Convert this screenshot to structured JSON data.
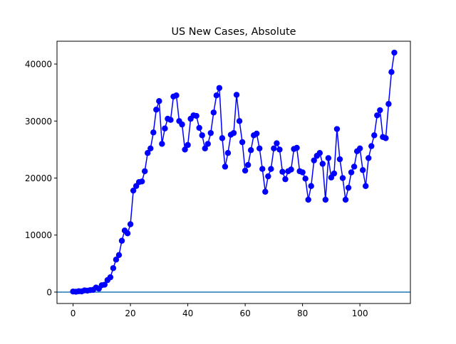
{
  "chart_data": {
    "type": "line",
    "title": "US New Cases, Absolute",
    "xlabel": "",
    "ylabel": "",
    "xlim": [
      -5.6,
      117.6
    ],
    "ylim": [
      -2000,
      44000
    ],
    "xticks": [
      0,
      20,
      40,
      60,
      80,
      100
    ],
    "yticks": [
      0,
      10000,
      20000,
      30000,
      40000
    ],
    "grid": false,
    "legend": "none",
    "colors": {
      "series": "#0000ff",
      "baseline": "#1f77b4"
    },
    "baseline_y": 0,
    "series": [
      {
        "marker": "circle",
        "x": [
          0,
          1,
          2,
          3,
          4,
          5,
          6,
          7,
          8,
          9,
          10,
          11,
          12,
          13,
          14,
          15,
          16,
          17,
          18,
          19,
          20,
          21,
          22,
          23,
          24,
          25,
          26,
          27,
          28,
          29,
          30,
          31,
          32,
          33,
          34,
          35,
          36,
          37,
          38,
          39,
          40,
          41,
          42,
          43,
          44,
          45,
          46,
          47,
          48,
          49,
          50,
          51,
          52,
          53,
          54,
          55,
          56,
          57,
          58,
          59,
          60,
          61,
          62,
          63,
          64,
          65,
          66,
          67,
          68,
          69,
          70,
          71,
          72,
          73,
          74,
          75,
          76,
          77,
          78,
          79,
          80,
          81,
          82,
          83,
          84,
          85,
          86,
          87,
          88,
          89,
          90,
          91,
          92,
          93,
          94,
          95,
          96,
          97,
          98,
          99,
          100,
          101,
          102,
          103,
          104,
          105,
          106,
          107,
          108,
          109,
          110,
          111,
          112
        ],
        "y": [
          100,
          60,
          150,
          120,
          300,
          250,
          350,
          400,
          800,
          600,
          1200,
          1300,
          2100,
          2600,
          4200,
          5700,
          6500,
          9000,
          10800,
          10300,
          11900,
          17800,
          18600,
          19300,
          19400,
          21200,
          24400,
          25200,
          28000,
          32000,
          33500,
          26000,
          28700,
          30400,
          30200,
          34300,
          34500,
          30000,
          29400,
          25000,
          25800,
          30400,
          31000,
          30900,
          28800,
          27500,
          25200,
          26000,
          27900,
          31500,
          34500,
          35800,
          27000,
          22000,
          24400,
          27600,
          27900,
          34600,
          30000,
          26300,
          21300,
          22300,
          24900,
          27500,
          27800,
          25200,
          21600,
          17600,
          20300,
          21600,
          25200,
          26100,
          25000,
          21100,
          19800,
          21200,
          21500,
          25100,
          25300,
          21200,
          21000,
          19900,
          16200,
          18600,
          23100,
          23900,
          24400,
          22500,
          16200,
          23500,
          20100,
          20800,
          28600,
          23300,
          20000,
          16200,
          18300,
          21000,
          22000,
          24700,
          25200,
          21400,
          18600,
          23500,
          25600,
          27500,
          31000,
          31900,
          27200,
          27000,
          33000,
          38600,
          42000
        ]
      }
    ]
  }
}
